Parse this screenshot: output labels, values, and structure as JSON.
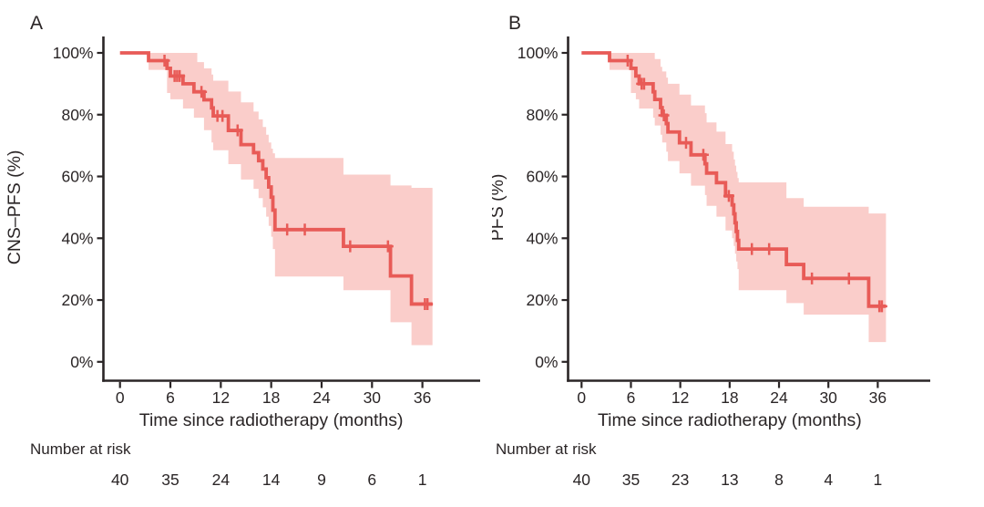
{
  "figure": {
    "background": "#ffffff",
    "axis_color": "#2a2526",
    "text_color": "#2a2526",
    "curve_color": "#e85b57",
    "band_color": "#facdca",
    "x_axis_title": "Time since radiotherapy (months)",
    "risk_table_label": "Number at risk",
    "y_tick_labels": [
      "100%",
      "80%",
      "60%",
      "40%",
      "20%",
      "0%"
    ],
    "x_tick_labels": [
      "0",
      "6",
      "12",
      "18",
      "24",
      "30",
      "36"
    ]
  },
  "chart_data": [
    {
      "type": "line",
      "subtype": "kaplan-meier-step",
      "panel_label": "A",
      "ylabel": "CNS–PFS (%)",
      "xlabel": "Time since radiotherapy (months)",
      "legend_position": "none",
      "grid": false,
      "xlim": [
        0,
        42
      ],
      "ylim": [
        0,
        100
      ],
      "x_ticks": [
        0,
        6,
        12,
        18,
        24,
        30,
        36
      ],
      "y_ticks": [
        0,
        20,
        40,
        60,
        80,
        100
      ],
      "series": [
        {
          "name": "CNS-PFS",
          "start": [
            0,
            100
          ],
          "steps": [
            [
              3.4,
              97.5
            ],
            [
              5.6,
              95
            ],
            [
              6.0,
              92.5
            ],
            [
              7.5,
              90
            ],
            [
              8.8,
              87.4
            ],
            [
              10.0,
              84.8
            ],
            [
              10.9,
              82.2
            ],
            [
              11.1,
              79.6
            ],
            [
              12.9,
              74.9
            ],
            [
              14.4,
              70.3
            ],
            [
              15.9,
              67.7
            ],
            [
              16.5,
              65.1
            ],
            [
              17.0,
              62.4
            ],
            [
              17.4,
              59.6
            ],
            [
              17.7,
              56.6
            ],
            [
              18.0,
              53.3
            ],
            [
              18.2,
              49.1
            ],
            [
              18.45,
              42.8
            ],
            [
              26.6,
              37.4
            ],
            [
              32.2,
              27.8
            ],
            [
              34.7,
              18.7
            ]
          ],
          "censors": [
            [
              5.3,
              97.5
            ],
            [
              6.5,
              92.5
            ],
            [
              6.8,
              92.5
            ],
            [
              7.1,
              92.5
            ],
            [
              9.7,
              87.4
            ],
            [
              11.6,
              79.6
            ],
            [
              12.2,
              79.6
            ],
            [
              14.0,
              74.9
            ],
            [
              19.9,
              42.8
            ],
            [
              22.0,
              42.8
            ],
            [
              27.4,
              37.4
            ],
            [
              31.9,
              37.4
            ],
            [
              36.3,
              18.7
            ],
            [
              36.6,
              18.7
            ]
          ],
          "end_time": 37.2
        }
      ],
      "confidence_band": [
        [
          3.4,
          94.5,
          100
        ],
        [
          5.6,
          87,
          100
        ],
        [
          6.0,
          85,
          100
        ],
        [
          7.5,
          82,
          100
        ],
        [
          8.8,
          79,
          100
        ],
        [
          9.2,
          79,
          97
        ],
        [
          10.0,
          75,
          95
        ],
        [
          10.9,
          71,
          93
        ],
        [
          11.1,
          68.5,
          91
        ],
        [
          12.9,
          64,
          87.5
        ],
        [
          14.4,
          59,
          84
        ],
        [
          15.9,
          56,
          81
        ],
        [
          16.5,
          53,
          78.5
        ],
        [
          17.0,
          50,
          76
        ],
        [
          17.4,
          47,
          73.5
        ],
        [
          17.7,
          44,
          71
        ],
        [
          18.0,
          40.5,
          69
        ],
        [
          18.2,
          36.5,
          67.5
        ],
        [
          18.45,
          27.6,
          66
        ],
        [
          26.6,
          23.2,
          60.6
        ],
        [
          32.2,
          12.8,
          57.1
        ],
        [
          34.7,
          5.4,
          56.3
        ]
      ],
      "risk_table": {
        "label": "Number at risk",
        "times": [
          0,
          6,
          12,
          18,
          24,
          30,
          36
        ],
        "values": [
          40,
          35,
          24,
          14,
          9,
          6,
          1
        ]
      }
    },
    {
      "type": "line",
      "subtype": "kaplan-meier-step",
      "panel_label": "B",
      "ylabel": "PFS (%)",
      "xlabel": "Time since radiotherapy (months)",
      "legend_position": "none",
      "grid": false,
      "xlim": [
        0,
        42
      ],
      "ylim": [
        0,
        100
      ],
      "x_ticks": [
        0,
        6,
        12,
        18,
        24,
        30,
        36
      ],
      "y_ticks": [
        0,
        20,
        40,
        60,
        80,
        100
      ],
      "series": [
        {
          "name": "PFS",
          "start": [
            0,
            100
          ],
          "steps": [
            [
              3.4,
              97.5
            ],
            [
              6.0,
              95
            ],
            [
              6.6,
              92.5
            ],
            [
              7.0,
              90
            ],
            [
              8.7,
              87.4
            ],
            [
              8.9,
              84.9
            ],
            [
              9.6,
              82.3
            ],
            [
              9.8,
              79.8
            ],
            [
              10.3,
              77.1
            ],
            [
              10.5,
              74.4
            ],
            [
              11.9,
              70.9
            ],
            [
              13.3,
              67
            ],
            [
              15.0,
              64.1
            ],
            [
              15.2,
              61.1
            ],
            [
              16.4,
              58
            ],
            [
              17.5,
              53.7
            ],
            [
              18.3,
              50.8
            ],
            [
              18.5,
              47.9
            ],
            [
              18.65,
              45
            ],
            [
              18.8,
              42.2
            ],
            [
              18.95,
              39.3
            ],
            [
              19.1,
              36.5
            ],
            [
              24.9,
              31.5
            ],
            [
              27.0,
              27
            ],
            [
              34.9,
              18
            ]
          ],
          "censors": [
            [
              5.6,
              97.5
            ],
            [
              7.3,
              90
            ],
            [
              7.6,
              90
            ],
            [
              10.0,
              79.8
            ],
            [
              12.7,
              70.9
            ],
            [
              14.8,
              67
            ],
            [
              17.9,
              53.7
            ],
            [
              20.7,
              36.5
            ],
            [
              22.8,
              36.5
            ],
            [
              28.0,
              27
            ],
            [
              32.5,
              27
            ],
            [
              36.2,
              18
            ],
            [
              36.5,
              18
            ]
          ],
          "end_time": 37.0
        }
      ],
      "confidence_band": [
        [
          3.4,
          94.5,
          100
        ],
        [
          6.0,
          87,
          100
        ],
        [
          6.6,
          85,
          100
        ],
        [
          7.0,
          82,
          100
        ],
        [
          8.7,
          79,
          100
        ],
        [
          8.9,
          76.5,
          98
        ],
        [
          9.6,
          73.5,
          95.5
        ],
        [
          9.8,
          71,
          94
        ],
        [
          10.3,
          68,
          92
        ],
        [
          10.5,
          65,
          90
        ],
        [
          11.9,
          61,
          86.5
        ],
        [
          13.3,
          57,
          83
        ],
        [
          15.0,
          54,
          80.5
        ],
        [
          15.2,
          50.5,
          77.5
        ],
        [
          16.4,
          47,
          74.5
        ],
        [
          17.5,
          42.5,
          70.5
        ],
        [
          18.3,
          40,
          68
        ],
        [
          18.5,
          37.5,
          65.5
        ],
        [
          18.65,
          35,
          63.5
        ],
        [
          18.8,
          32.5,
          61.5
        ],
        [
          18.95,
          30,
          59.5
        ],
        [
          19.1,
          23.2,
          58.1
        ],
        [
          24.9,
          19,
          53
        ],
        [
          27.0,
          15.3,
          50.2
        ],
        [
          34.9,
          6.4,
          48
        ]
      ],
      "risk_table": {
        "label": "Number at risk",
        "times": [
          0,
          6,
          12,
          18,
          24,
          30,
          36
        ],
        "values": [
          40,
          35,
          23,
          13,
          8,
          4,
          1
        ]
      }
    }
  ]
}
